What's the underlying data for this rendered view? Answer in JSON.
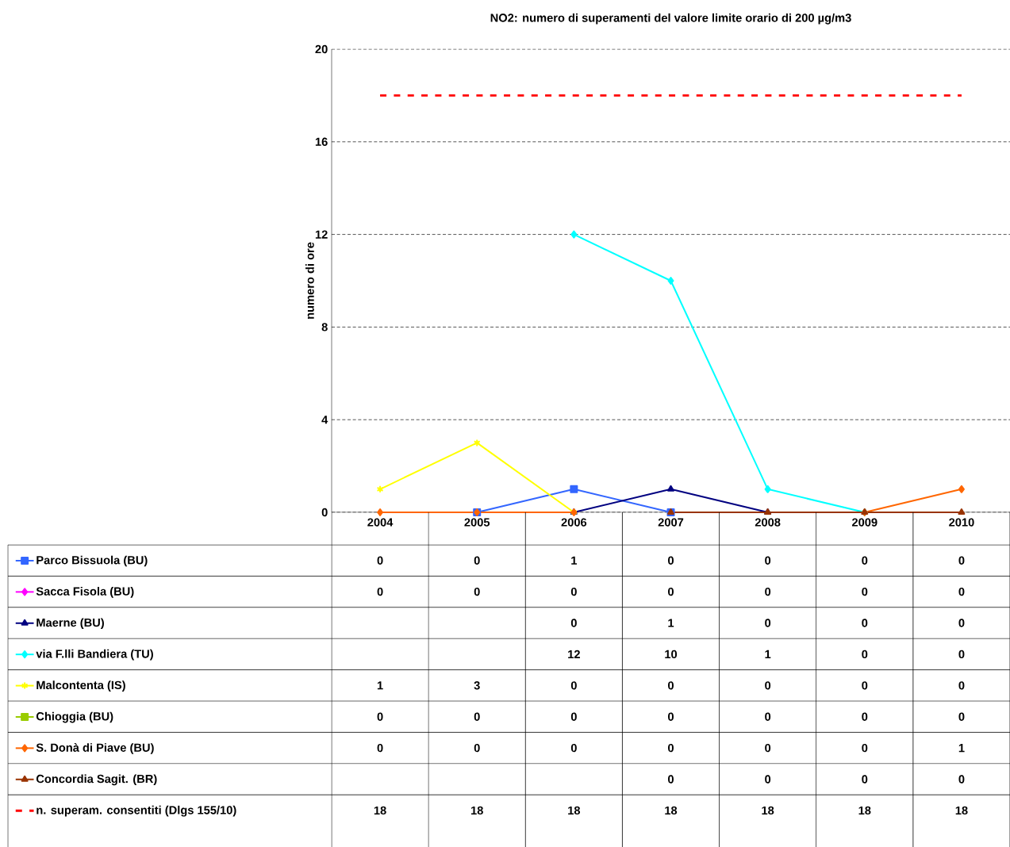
{
  "chart_data": {
    "type": "line",
    "title": "NO2: numero di superamenti del valore limite orario di 200 µg/m3",
    "ylabel": "numero di ore",
    "categories": [
      "2004",
      "2005",
      "2006",
      "2007",
      "2008",
      "2009",
      "2010"
    ],
    "series": [
      {
        "name": "Parco Bissuola (BU)",
        "color": "#3366ff",
        "marker": "square",
        "values": [
          null,
          0,
          1,
          0,
          null,
          null,
          null
        ],
        "value_labels": [
          "0",
          "0",
          "1",
          "0",
          "0",
          "0",
          "0"
        ]
      },
      {
        "name": "Sacca Fisola (BU)",
        "color": "#ff00ff",
        "marker": "diamond",
        "values": [
          null,
          null,
          null,
          null,
          null,
          null,
          null
        ],
        "value_labels": [
          "0",
          "0",
          "0",
          "0",
          "0",
          "0",
          "0"
        ]
      },
      {
        "name": "Maerne (BU)",
        "color": "#000080",
        "marker": "triangle",
        "values": [
          null,
          null,
          0,
          1,
          0,
          null,
          null
        ],
        "value_labels": [
          null,
          null,
          "0",
          "1",
          "0",
          "0",
          "0"
        ]
      },
      {
        "name": "via F.lli Bandiera (TU)",
        "color": "#00ffff",
        "marker": "diamond",
        "values": [
          null,
          null,
          12,
          10,
          1,
          0,
          null
        ],
        "value_labels": [
          null,
          null,
          "12",
          "10",
          "1",
          "0",
          "0"
        ]
      },
      {
        "name": "Malcontenta (IS)",
        "color": "#ffff00",
        "marker": "cross",
        "values": [
          1,
          3,
          0,
          null,
          null,
          null,
          null
        ],
        "value_labels": [
          "1",
          "3",
          "0",
          "0",
          "0",
          "0",
          "0"
        ]
      },
      {
        "name": "Chioggia (BU)",
        "color": "#99cc00",
        "marker": "square",
        "values": [
          null,
          null,
          null,
          null,
          null,
          null,
          null
        ],
        "value_labels": [
          "0",
          "0",
          "0",
          "0",
          "0",
          "0",
          "0"
        ]
      },
      {
        "name": "S. Donà di Piave (BU)",
        "color": "#ff6600",
        "marker": "diamond",
        "values": [
          0,
          0,
          0,
          null,
          null,
          0,
          1
        ],
        "value_labels": [
          "0",
          "0",
          "0",
          "0",
          "0",
          "0",
          "1"
        ]
      },
      {
        "name": "Concordia Sagit. (BR)",
        "color": "#993300",
        "marker": "triangle",
        "values": [
          null,
          null,
          null,
          0,
          0,
          0,
          0
        ],
        "value_labels": [
          null,
          null,
          null,
          "0",
          "0",
          "0",
          "0"
        ]
      },
      {
        "name": "n. superam. consentiti (Dlgs 155/10)",
        "color": "#ff0000",
        "marker": "none",
        "line_style": "dashed",
        "values": [
          18,
          18,
          18,
          18,
          18,
          18,
          18
        ],
        "value_labels": [
          "18",
          "18",
          "18",
          "18",
          "18",
          "18",
          "18"
        ]
      }
    ],
    "ylim": [
      0,
      20
    ],
    "yticks": [
      0,
      4,
      8,
      12,
      16,
      20
    ],
    "grid": "y",
    "legend": "bottom"
  }
}
